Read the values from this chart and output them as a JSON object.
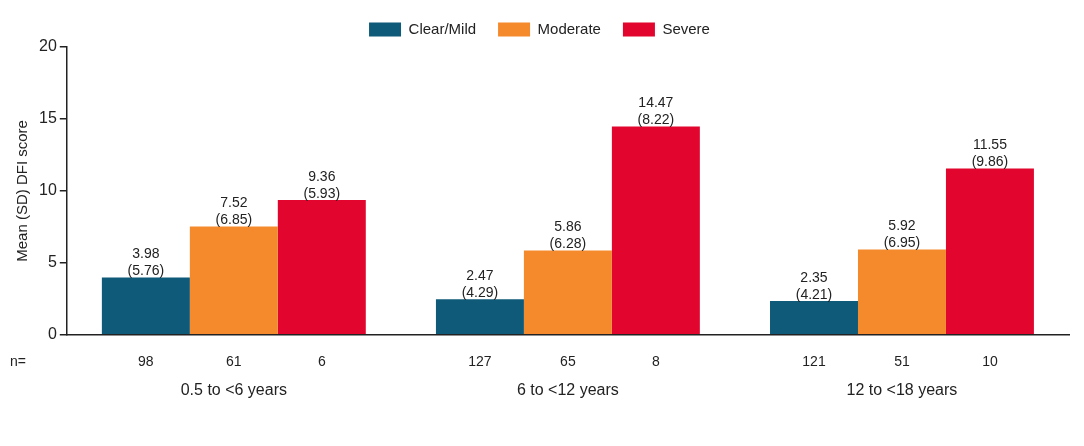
{
  "chart_data": {
    "type": "bar",
    "ylabel": "Mean (SD) DFI score",
    "categories": [
      "0.5 to <6 years",
      "6 to <12 years",
      "12 to <18 years"
    ],
    "series": [
      {
        "name": "Clear/Mild",
        "color": "#0e5a78",
        "values": [
          3.98,
          2.47,
          2.35
        ],
        "value_labels": [
          "3.98\n(5.76)",
          "2.47\n(4.29)",
          "2.35\n(4.21)"
        ]
      },
      {
        "name": "Moderate",
        "color": "#f58a2c",
        "values": [
          7.52,
          5.86,
          5.92
        ],
        "value_labels": [
          "7.52\n(6.85)",
          "5.86\n(6.28)",
          "5.92\n(6.95)"
        ]
      },
      {
        "name": "Severe",
        "color": "#e2062f",
        "values": [
          9.36,
          14.47,
          11.55
        ],
        "value_labels": [
          "9.36\n(5.93)",
          "14.47\n(8.22)",
          "11.55\n(9.86)"
        ]
      }
    ],
    "annotations": [
      "n=",
      "98",
      "61",
      "6",
      "127",
      "65",
      "8",
      "121",
      "51",
      "10"
    ],
    "ylim": [
      0,
      20
    ],
    "yticks": [
      0,
      5,
      10,
      15,
      20
    ],
    "grid": false,
    "legend": "top"
  }
}
